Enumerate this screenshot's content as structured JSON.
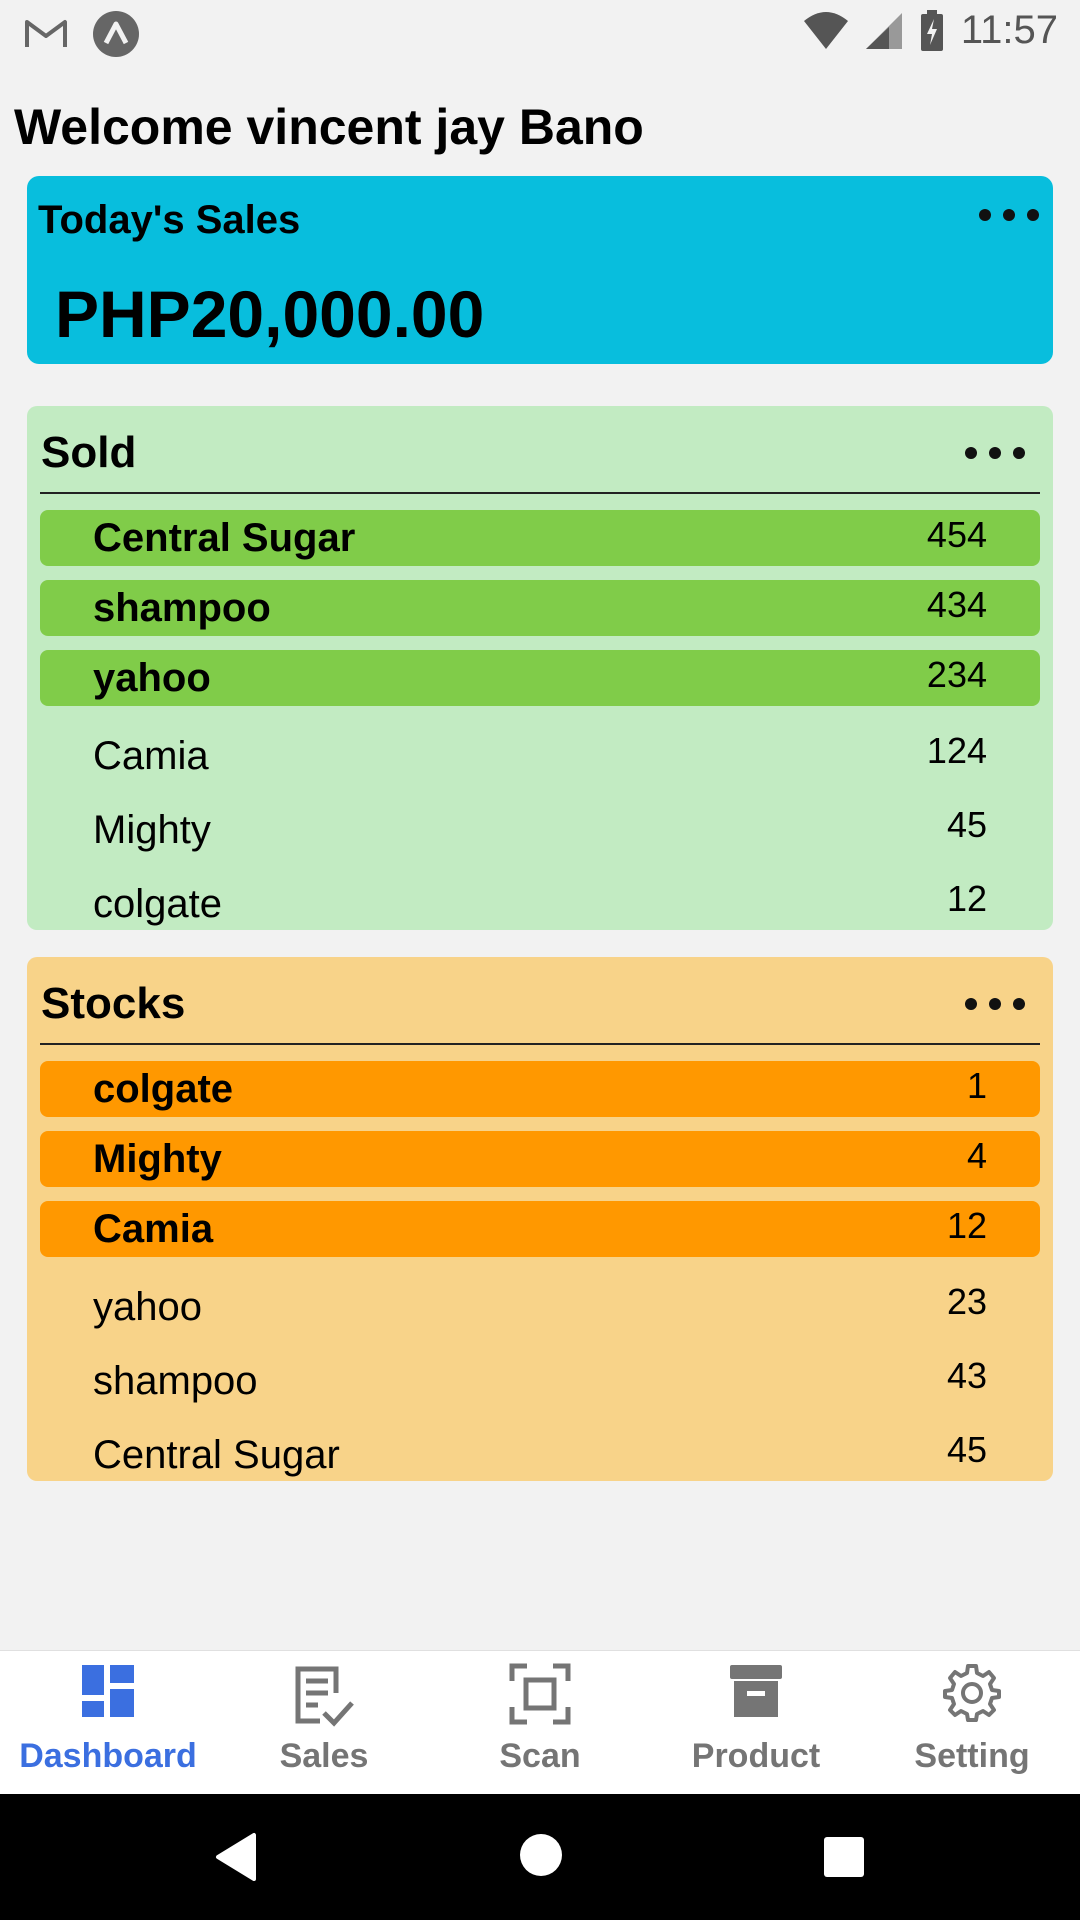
{
  "status_bar": {
    "time": "11:57",
    "icons": [
      "gmail-icon",
      "app-notification-icon",
      "wifi-icon",
      "cell-signal-icon",
      "battery-charging-icon"
    ]
  },
  "welcome": "Welcome vincent jay Bano",
  "today_sales": {
    "title": "Today's Sales",
    "amount": "PHP20,000.00",
    "color": "#08bedd"
  },
  "sold": {
    "title": "Sold",
    "accent": "#80cc49",
    "background": "#c2ebc2",
    "items": [
      {
        "name": "Central Sugar",
        "value": "454",
        "highlight": true
      },
      {
        "name": "shampoo",
        "value": "434",
        "highlight": true
      },
      {
        "name": "yahoo",
        "value": "234",
        "highlight": true
      },
      {
        "name": "Camia",
        "value": "124",
        "highlight": false
      },
      {
        "name": "Mighty",
        "value": "45",
        "highlight": false
      },
      {
        "name": "colgate",
        "value": "12",
        "highlight": false
      }
    ]
  },
  "stocks": {
    "title": "Stocks",
    "accent": "#ff9800",
    "background": "#f8d389",
    "items": [
      {
        "name": "colgate",
        "value": "1",
        "highlight": true
      },
      {
        "name": "Mighty",
        "value": "4",
        "highlight": true
      },
      {
        "name": "Camia",
        "value": "12",
        "highlight": true
      },
      {
        "name": "yahoo",
        "value": "23",
        "highlight": false
      },
      {
        "name": "shampoo",
        "value": "43",
        "highlight": false
      },
      {
        "name": "Central Sugar",
        "value": "45",
        "highlight": false
      }
    ]
  },
  "bottom_nav": {
    "active_color": "#3b6fe0",
    "items": [
      {
        "label": "Dashboard",
        "icon": "dashboard-icon",
        "active": true
      },
      {
        "label": "Sales",
        "icon": "sales-checklist-icon",
        "active": false
      },
      {
        "label": "Scan",
        "icon": "scan-icon",
        "active": false
      },
      {
        "label": "Product",
        "icon": "archive-box-icon",
        "active": false
      },
      {
        "label": "Setting",
        "icon": "gear-icon",
        "active": false
      }
    ]
  },
  "system_nav": [
    "back-icon",
    "home-icon",
    "recents-icon"
  ]
}
